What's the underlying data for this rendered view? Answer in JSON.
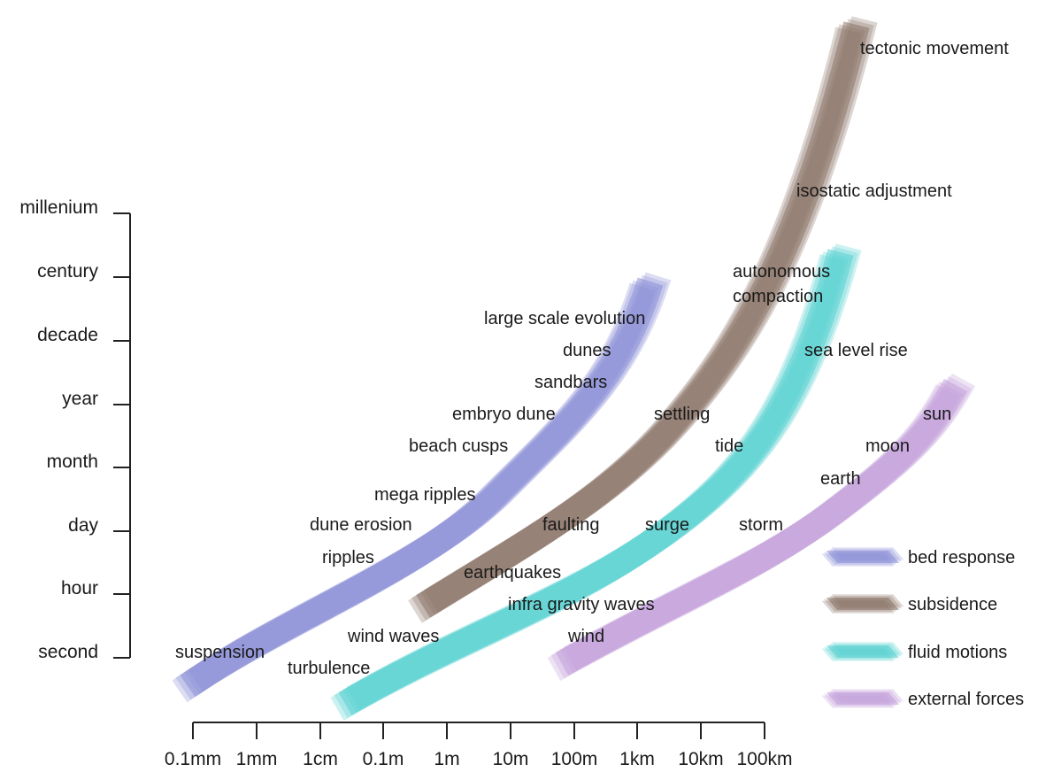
{
  "y_axis": {
    "ticks": [
      "second",
      "hour",
      "day",
      "month",
      "year",
      "decade",
      "century",
      "millenium"
    ]
  },
  "x_axis": {
    "ticks": [
      "0.1mm",
      "1mm",
      "1cm",
      "0.1m",
      "1m",
      "10m",
      "100m",
      "1km",
      "10km",
      "100km"
    ]
  },
  "bands": [
    {
      "key": "bed",
      "color": "#8a8fd6",
      "label": "bed response",
      "items": [
        "suspension",
        "ripples",
        "dune erosion",
        "mega ripples",
        "beach cusps",
        "embryo dune",
        "sandbars",
        "dunes",
        "large scale evolution"
      ]
    },
    {
      "key": "subsidence",
      "color": "#8b7468",
      "label": "subsidence",
      "items": [
        "earthquakes",
        "faulting",
        "settling",
        "autonomous",
        "compaction",
        "isostatic adjustment",
        "tectonic movement"
      ]
    },
    {
      "key": "fluid",
      "color": "#57d1cf",
      "label": "fluid motions",
      "items": [
        "turbulence",
        "wind waves",
        "infra gravity waves",
        "surge",
        "tide",
        "sea level rise"
      ]
    },
    {
      "key": "external",
      "color": "#c2a0db",
      "label": "external forces",
      "items": [
        "wind",
        "storm",
        "earth",
        "moon",
        "sun"
      ]
    }
  ]
}
